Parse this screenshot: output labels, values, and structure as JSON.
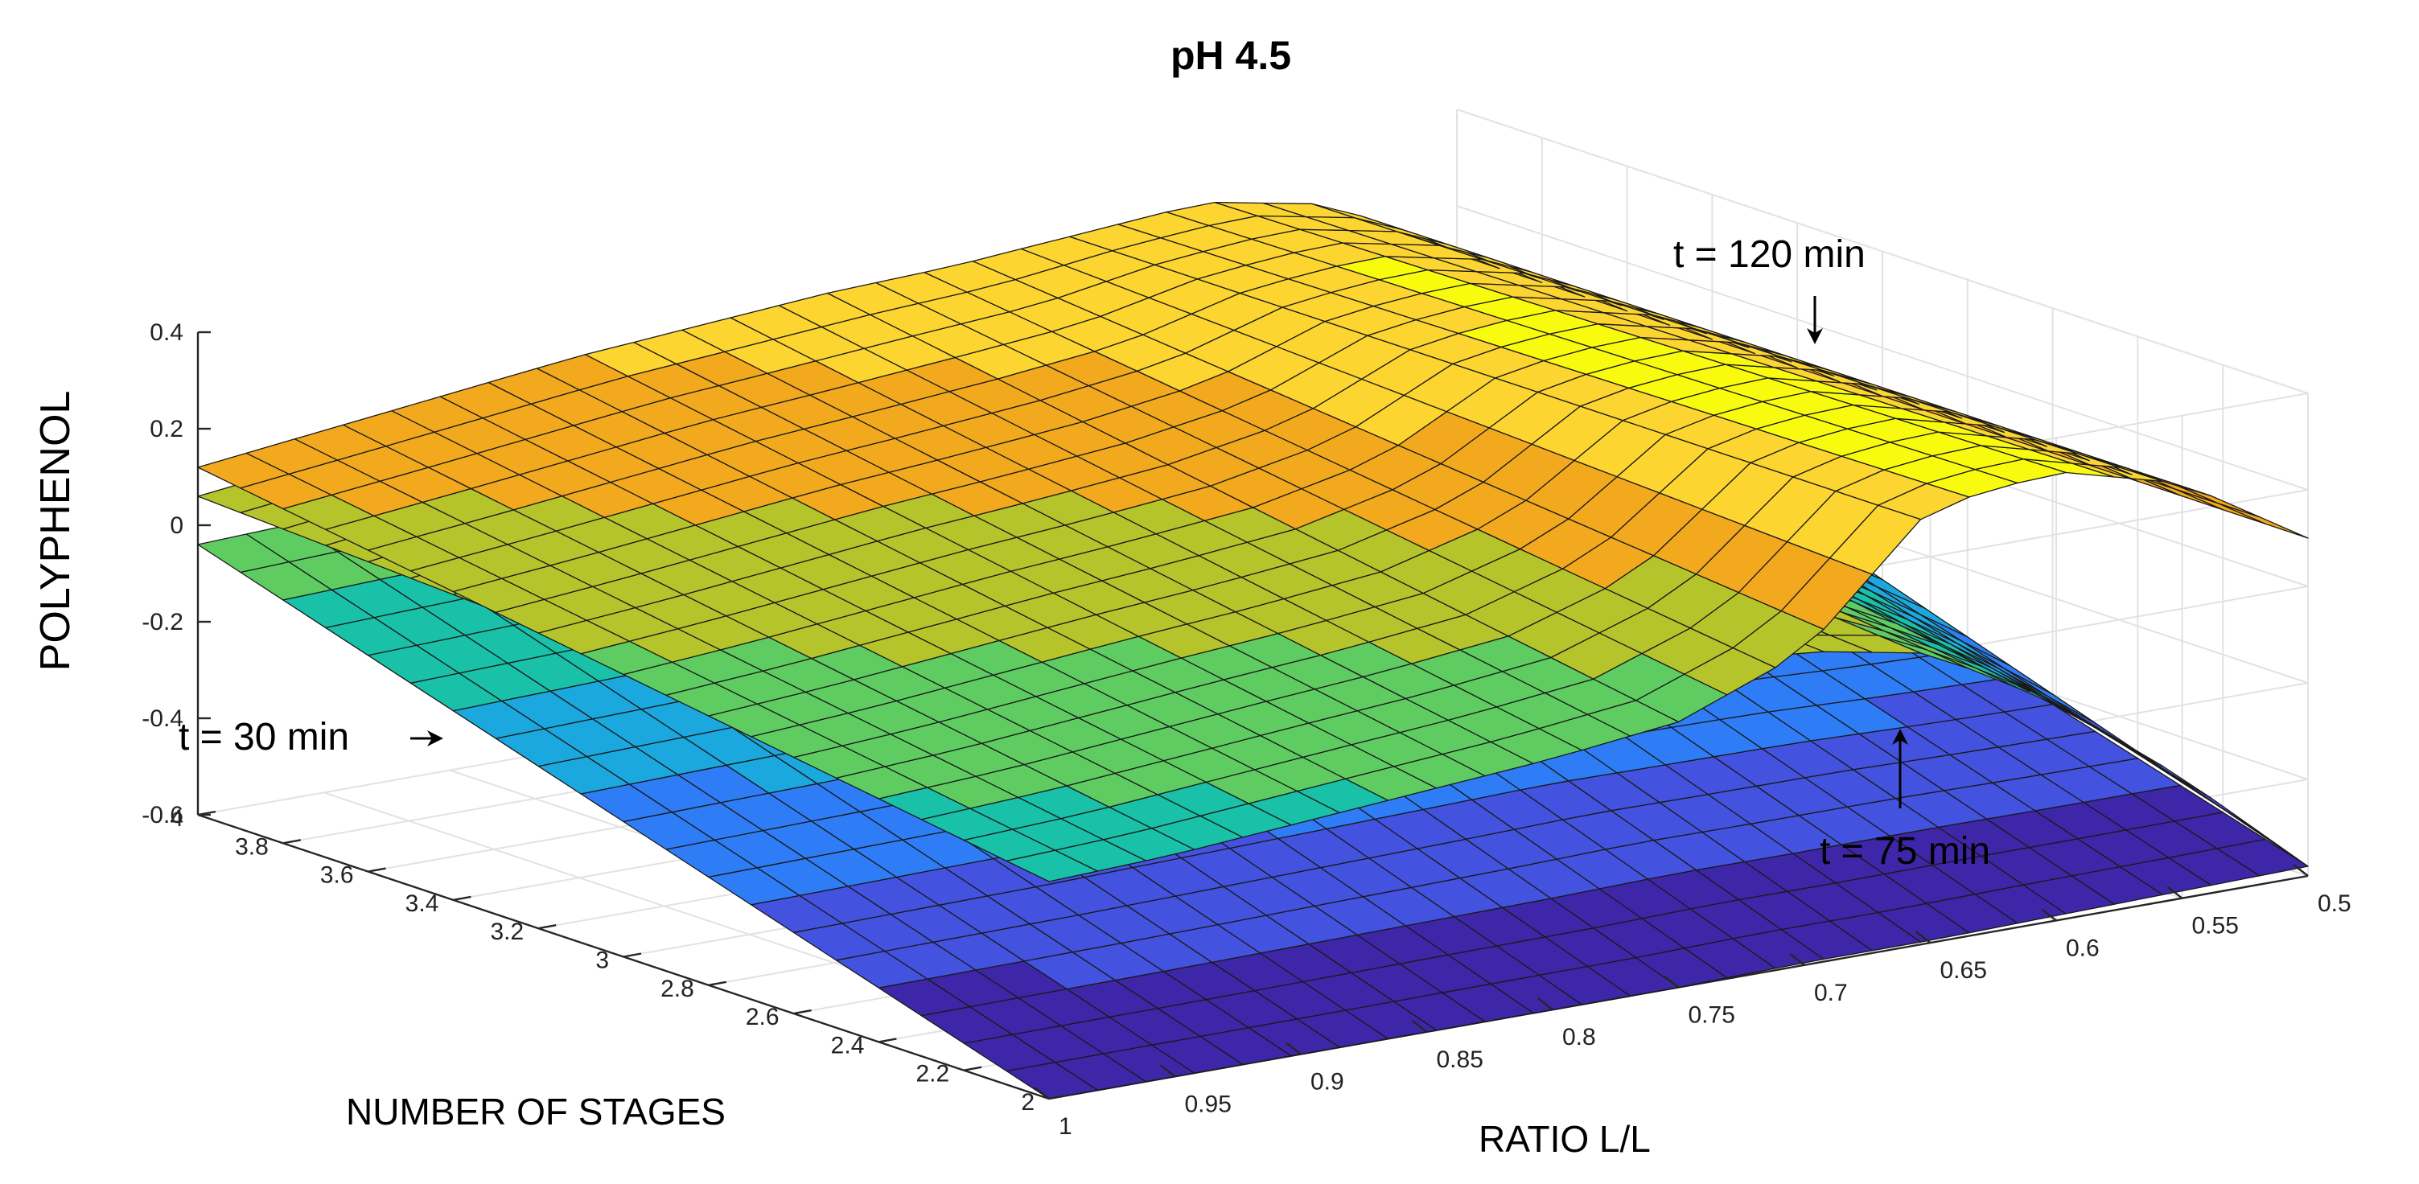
{
  "chart_data": {
    "type": "surface",
    "title": "pH  4.5",
    "xlabel": "NUMBER OF STAGES",
    "ylabel": "RATIO L/L",
    "zlabel": "POLYPHENOL",
    "x_range": [
      2,
      4
    ],
    "y_range": [
      0.5,
      1
    ],
    "z_range": [
      -0.6,
      0.4
    ],
    "x_ticks": [
      "2",
      "2.2",
      "2.4",
      "2.6",
      "2.8",
      "3",
      "3.2",
      "3.4",
      "3.6",
      "3.8",
      "4"
    ],
    "y_ticks": [
      "0.5",
      "0.55",
      "0.6",
      "0.65",
      "0.7",
      "0.75",
      "0.8",
      "0.85",
      "0.9",
      "0.95",
      "1"
    ],
    "z_ticks": [
      "-0.6",
      "-0.4",
      "-0.2",
      "0",
      "0.2",
      "0.4"
    ],
    "grid": true,
    "colormap": [
      "#3e26a8",
      "#4353e0",
      "#2f7df6",
      "#1aa8de",
      "#18c1a8",
      "#5fcc62",
      "#b6c42c",
      "#f3a91d",
      "#fdd530",
      "#f9fb0e"
    ],
    "series": [
      {
        "name": "t = 30 min",
        "y_samples": [
          0.5,
          0.55,
          0.6,
          0.65,
          0.7,
          0.75,
          0.8,
          0.85,
          0.9,
          0.95,
          1.0
        ],
        "z_at_x2": [
          -0.58,
          -0.585,
          -0.59,
          -0.595,
          -0.595,
          -0.6,
          -0.6,
          -0.6,
          -0.6,
          -0.6,
          -0.6
        ],
        "z_at_x4": [
          -0.05,
          -0.02,
          0.02,
          0.04,
          0.05,
          0.04,
          0.02,
          0.0,
          -0.02,
          -0.03,
          -0.04
        ]
      },
      {
        "name": "t = 75 min",
        "y_samples": [
          0.5,
          0.55,
          0.6,
          0.65,
          0.7,
          0.75,
          0.8,
          0.85,
          0.9,
          0.95,
          1.0
        ],
        "z_at_x2": [
          -0.58,
          -0.35,
          -0.15,
          0.0,
          0.05,
          0.06,
          0.05,
          0.04,
          0.03,
          0.01,
          -0.03
        ],
        "z_at_x4": [
          0.02,
          0.1,
          0.14,
          0.15,
          0.15,
          0.15,
          0.14,
          0.13,
          0.11,
          0.09,
          0.06
        ]
      },
      {
        "name": "t = 120 min",
        "y_samples": [
          0.5,
          0.55,
          0.6,
          0.65,
          0.7,
          0.75,
          0.8,
          0.85,
          0.9,
          0.95,
          1.0
        ],
        "z_at_x2": [
          0.1,
          0.26,
          0.33,
          0.3,
          0.05,
          -0.05,
          -0.08,
          -0.1,
          -0.12,
          -0.14,
          -0.15
        ],
        "z_at_x4": [
          0.1,
          0.25,
          0.3,
          0.28,
          0.26,
          0.25,
          0.23,
          0.21,
          0.18,
          0.15,
          0.12
        ]
      }
    ],
    "annotations": [
      {
        "text": "t = 30 min",
        "arrow": "right"
      },
      {
        "text": "t = 75 min",
        "arrow": "up"
      },
      {
        "text": "t = 120 min",
        "arrow": "down"
      }
    ]
  }
}
